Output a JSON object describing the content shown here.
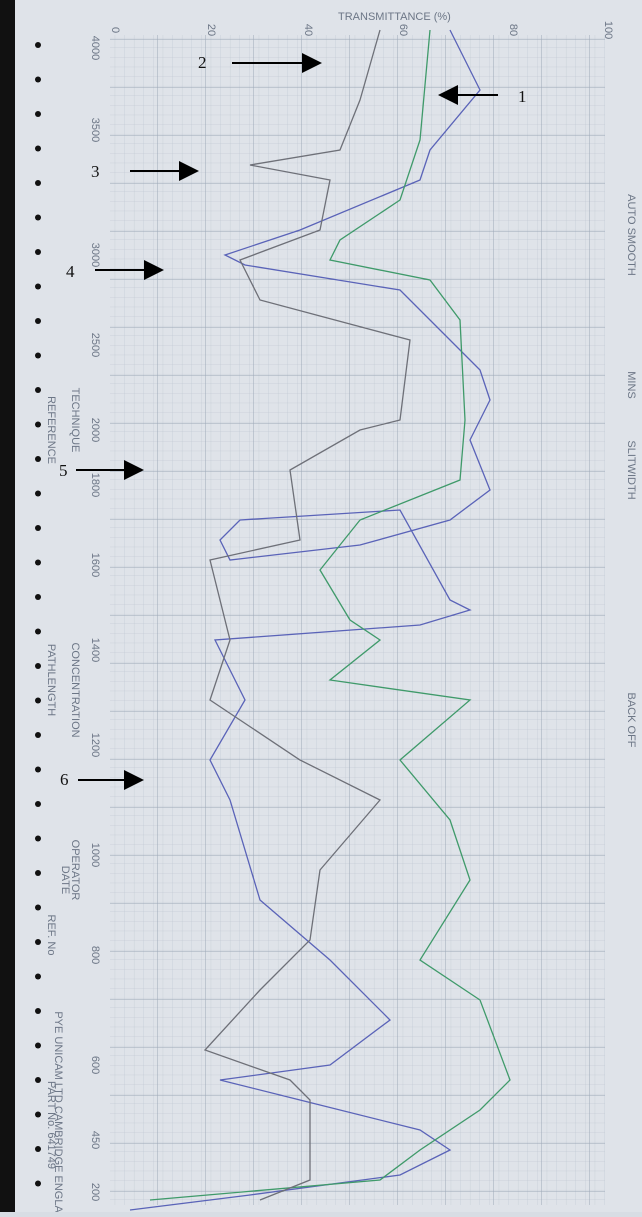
{
  "header": {
    "title": "TRANSMITTANCE (%)"
  },
  "annotations": [
    "1",
    "2",
    "3",
    "4",
    "5",
    "6"
  ],
  "wavenumber_labels": [
    "4000",
    "3500",
    "3000",
    "2500",
    "2000",
    "1800",
    "1600",
    "1400",
    "1200",
    "1000",
    "800",
    "600",
    "450",
    "200"
  ],
  "transmittance_labels": [
    "0",
    "20",
    "40",
    "60",
    "80",
    "100"
  ],
  "form_labels": [
    "REFERENCE",
    "TECHNIQUE",
    "PATHLENGTH",
    "CONCENTRATION",
    "OPERATOR",
    "DATE",
    "REF. No",
    "PYE UNICAM LTD CAMBRIDGE ENGLAND",
    "PART No. 641749"
  ],
  "control_labels": [
    "AUTO SMOOTH",
    "MINS",
    "SLITWIDTH",
    "BACK OFF"
  ]
}
